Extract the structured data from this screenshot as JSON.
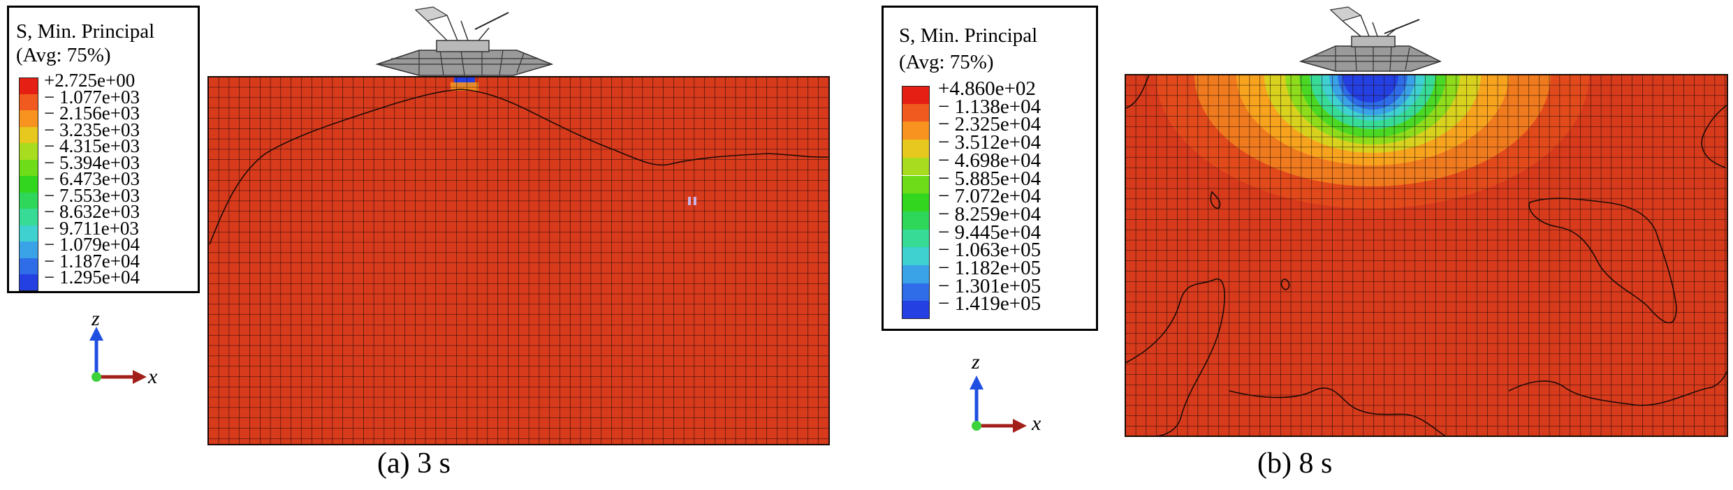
{
  "panels": [
    {
      "id": "a",
      "caption": "(a) 3 s",
      "legend": {
        "title_line1": "S, Min. Principal",
        "title_line2": "(Avg: 75%)",
        "labels": [
          "+2.725e+00",
          "− 1.077e+03",
          "− 2.156e+03",
          "− 3.235e+03",
          "− 4.315e+03",
          "− 5.394e+03",
          "− 6.473e+03",
          "− 7.553e+03",
          "− 8.632e+03",
          "− 9.711e+03",
          "− 1.079e+04",
          "− 1.187e+04",
          "− 1.295e+04"
        ]
      },
      "axes": {
        "vertical": "z",
        "horizontal": "x"
      }
    },
    {
      "id": "b",
      "caption": "(b) 8 s",
      "legend": {
        "title_line1": "S, Min. Principal",
        "title_line2": "(Avg: 75%)",
        "labels": [
          "+4.860e+02",
          "− 1.138e+04",
          "− 2.325e+04",
          "− 3.512e+04",
          "− 4.698e+04",
          "− 5.885e+04",
          "− 7.072e+04",
          "− 8.259e+04",
          "− 9.445e+04",
          "− 1.063e+05",
          "− 1.182e+05",
          "− 1.301e+05",
          "− 1.419e+05"
        ]
      },
      "axes": {
        "vertical": "z",
        "horizontal": "x"
      }
    }
  ],
  "colors": {
    "contour_scale": [
      "#e51f14",
      "#f05a1e",
      "#f7931e",
      "#e6c81f",
      "#a8dc1e",
      "#6fdc1a",
      "#33d61e",
      "#2ed65a",
      "#37db96",
      "#3fd0d0",
      "#3aa2e6",
      "#2f6de8",
      "#2440e2"
    ],
    "soil_base": "#d83a1c",
    "mesh_line": "#1a0a05",
    "axis_z": "#1f4fe0",
    "axis_x": "#a3201a",
    "origin": "#3cd23c",
    "implement": "#9a9a9a"
  }
}
